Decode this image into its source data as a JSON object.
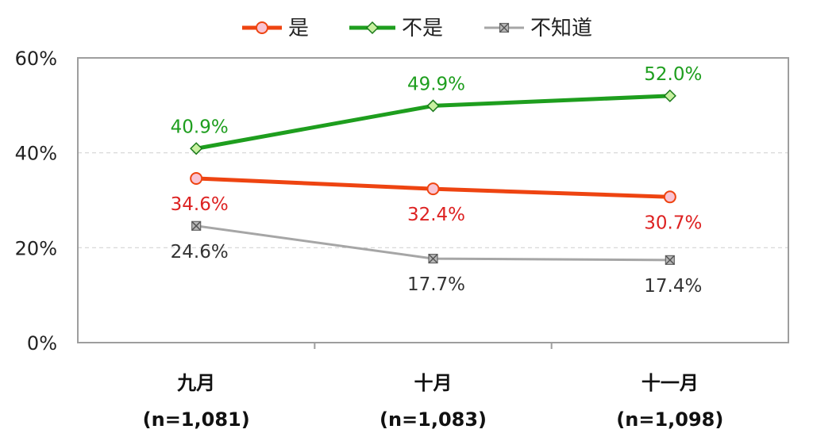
{
  "chart_data": {
    "type": "line",
    "categories": [
      "九月",
      "十月",
      "十一月"
    ],
    "category_sublabels": [
      "(n=1,081)",
      "(n=1,083)",
      "(n=1,098)"
    ],
    "ylim": [
      0,
      60
    ],
    "yticks": [
      0,
      20,
      40,
      60
    ],
    "ytick_labels": [
      "0%",
      "20%",
      "40%",
      "60%"
    ],
    "grid": true,
    "legend_position": "top",
    "series": [
      {
        "name": "是",
        "values": [
          34.6,
          32.4,
          30.7
        ],
        "labels": [
          "34.6%",
          "32.4%",
          "30.7%"
        ],
        "color": "#ee4411",
        "marker": "circle",
        "marker_fill": "#f9c4d4",
        "label_color": "#dd2222",
        "label_pos": "below"
      },
      {
        "name": "不是",
        "values": [
          40.9,
          49.9,
          52.0
        ],
        "labels": [
          "40.9%",
          "49.9%",
          "52.0%"
        ],
        "color": "#1e9e1e",
        "marker": "diamond",
        "marker_fill": "#c8f0a0",
        "label_color": "#1e9e1e",
        "label_pos": "above"
      },
      {
        "name": "不知道",
        "values": [
          24.6,
          17.7,
          17.4
        ],
        "labels": [
          "24.6%",
          "17.7%",
          "17.4%"
        ],
        "color": "#a6a6a6",
        "marker": "square-x",
        "marker_fill": "#b8b8b8",
        "label_color": "#333333",
        "label_pos": "below"
      }
    ]
  }
}
